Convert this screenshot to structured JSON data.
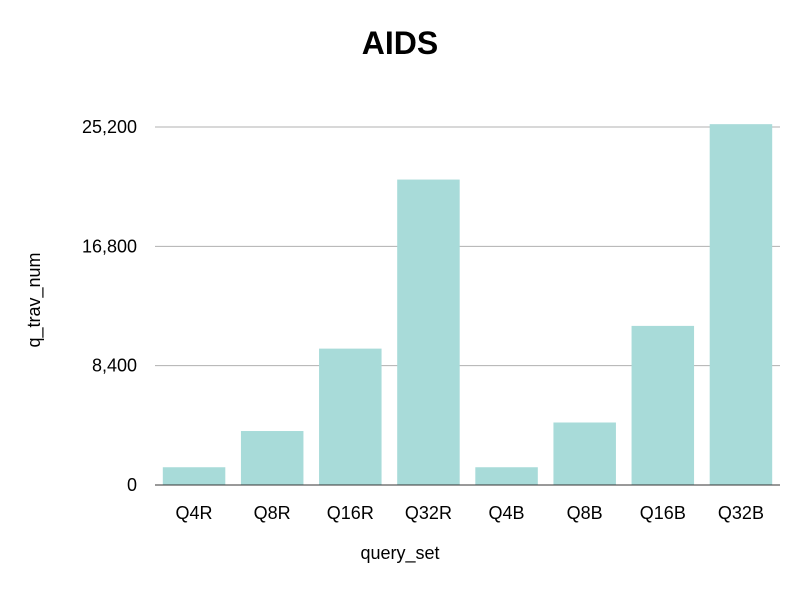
{
  "chart_data": {
    "type": "bar",
    "title": "AIDS",
    "xlabel": "query_set",
    "ylabel": "q_trav_num",
    "categories": [
      "Q4R",
      "Q8R",
      "Q16R",
      "Q32R",
      "Q4B",
      "Q8B",
      "Q16B",
      "Q32B"
    ],
    "values": [
      1250,
      3800,
      9600,
      21500,
      1250,
      4400,
      11200,
      25400
    ],
    "ylim": [
      0,
      25200
    ],
    "yticks": [
      0,
      8400,
      16800,
      25200
    ],
    "ytick_labels": [
      "0",
      "8,400",
      "16,800",
      "25,200"
    ],
    "grid": true,
    "bar_color": "#a8dbd9"
  }
}
